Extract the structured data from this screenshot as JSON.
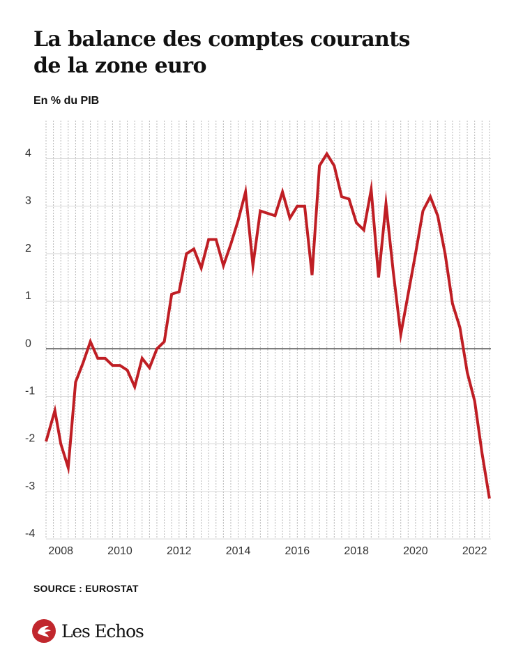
{
  "header": {
    "title_line1": "La balance des comptes courants",
    "title_line2": "de la zone euro",
    "subtitle": "En % du PIB"
  },
  "footer": {
    "source": "SOURCE : EUROSTAT",
    "brand": "Les Echos",
    "brand_icon": "les-echos-logo-icon",
    "brand_color": "#c1272d"
  },
  "chart_data": {
    "type": "line",
    "title": "La balance des comptes courants de la zone euro",
    "ylabel": "En % du PIB",
    "xlabel": "",
    "ylim": [
      -4,
      4.8
    ],
    "xlim": [
      2007.5,
      2022.55
    ],
    "yticks": [
      -4,
      -3,
      -2,
      -1,
      0,
      1,
      2,
      3,
      4
    ],
    "xticks": [
      2008,
      2010,
      2012,
      2014,
      2016,
      2018,
      2020,
      2022
    ],
    "grid": {
      "vertical": true,
      "horizontal": true,
      "vertical_style": "dotted",
      "horizontal_style": "solid"
    },
    "zero_line": true,
    "line_color": "#bf1e24",
    "series": [
      {
        "name": "",
        "x": [
          2007.5,
          2007.8,
          2008.0,
          2008.25,
          2008.5,
          2008.75,
          2009.0,
          2009.25,
          2009.5,
          2009.75,
          2010.0,
          2010.25,
          2010.5,
          2010.75,
          2011.0,
          2011.25,
          2011.5,
          2011.75,
          2012.0,
          2012.25,
          2012.5,
          2012.75,
          2013.0,
          2013.25,
          2013.5,
          2013.75,
          2014.0,
          2014.25,
          2014.5,
          2014.75,
          2015.0,
          2015.25,
          2015.5,
          2015.75,
          2016.0,
          2016.25,
          2016.5,
          2016.75,
          2017.0,
          2017.25,
          2017.5,
          2017.75,
          2018.0,
          2018.25,
          2018.5,
          2018.75,
          2019.0,
          2019.25,
          2019.5,
          2019.75,
          2020.0,
          2020.25,
          2020.5,
          2020.75,
          2021.0,
          2021.25,
          2021.5,
          2021.75,
          2022.0,
          2022.25,
          2022.5
        ],
        "y": [
          -1.95,
          -1.3,
          -2.0,
          -2.5,
          -0.7,
          -0.3,
          0.15,
          -0.2,
          -0.2,
          -0.35,
          -0.35,
          -0.45,
          -0.8,
          -0.2,
          -0.4,
          0.0,
          0.15,
          1.15,
          1.2,
          2.0,
          2.1,
          1.7,
          2.3,
          2.3,
          1.75,
          2.2,
          2.7,
          3.3,
          1.75,
          2.9,
          2.85,
          2.8,
          3.3,
          2.75,
          3.0,
          3.0,
          1.55,
          3.85,
          4.1,
          3.85,
          3.2,
          3.15,
          2.65,
          2.5,
          3.35,
          1.5,
          3.05,
          1.6,
          0.3,
          1.15,
          2.0,
          2.9,
          3.2,
          2.8,
          2.0,
          0.95,
          0.45,
          -0.5,
          -1.1,
          -2.2,
          -3.15
        ]
      }
    ]
  }
}
